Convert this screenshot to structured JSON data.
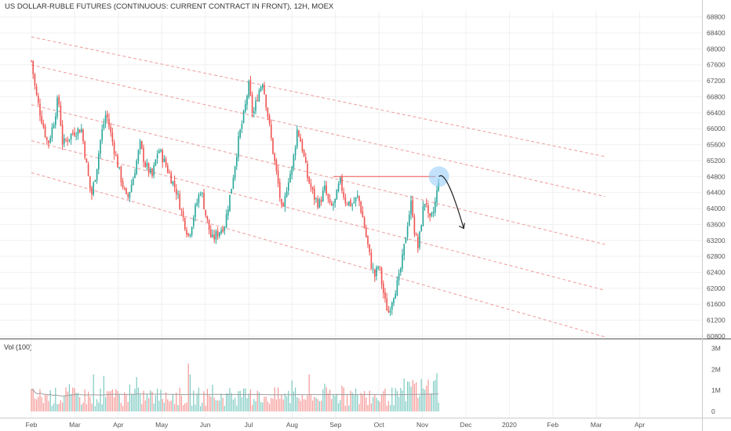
{
  "header": {
    "title": "US DOLLAR-RUBLE FUTURES (CONTINUOUS: CURRENT CONTRACT IN FRONT), 12H, MOEX"
  },
  "volume_pane": {
    "label": "Vol (100)"
  },
  "colors": {
    "up": "#26a69a",
    "down": "#ef5350",
    "channel": "#ef9a9a",
    "resistance": "#ef5350",
    "highlight": "#90caf9",
    "arrow": "#222222",
    "grid": "#f0f0f0",
    "ma": "#9e9e9e"
  },
  "chart_data": [
    {
      "type": "candlestick",
      "title": "",
      "y_axis": {
        "ticks": [
          60800,
          61200,
          61600,
          62000,
          62400,
          62800,
          63200,
          63600,
          64000,
          64400,
          64800,
          65200,
          65600,
          66000,
          66400,
          66800,
          67200,
          67600,
          68000,
          68400,
          68800
        ],
        "range": [
          60760,
          68950
        ],
        "position": "right"
      },
      "x_axis": {
        "ticks": [
          "Feb",
          "Mar",
          "Apr",
          "May",
          "Jun",
          "Jul",
          "Aug",
          "Sep",
          "Oct",
          "Nov",
          "Dec",
          "2020",
          "Feb",
          "Mar",
          "Apr"
        ]
      },
      "grid": true,
      "price_path": [
        {
          "t": 0,
          "p": 67700
        },
        {
          "t": 0.1,
          "p": 66900
        },
        {
          "t": 0.2,
          "p": 66400
        },
        {
          "t": 0.38,
          "p": 65600
        },
        {
          "t": 0.5,
          "p": 66100
        },
        {
          "t": 0.62,
          "p": 66800
        },
        {
          "t": 0.72,
          "p": 65600
        },
        {
          "t": 0.95,
          "p": 65900
        },
        {
          "t": 1.15,
          "p": 66000
        },
        {
          "t": 1.28,
          "p": 65000
        },
        {
          "t": 1.38,
          "p": 64300
        },
        {
          "t": 1.5,
          "p": 65000
        },
        {
          "t": 1.6,
          "p": 65800
        },
        {
          "t": 1.72,
          "p": 66400
        },
        {
          "t": 1.88,
          "p": 65600
        },
        {
          "t": 2.05,
          "p": 64800
        },
        {
          "t": 2.2,
          "p": 64200
        },
        {
          "t": 2.35,
          "p": 64800
        },
        {
          "t": 2.5,
          "p": 65600
        },
        {
          "t": 2.62,
          "p": 65100
        },
        {
          "t": 2.78,
          "p": 64800
        },
        {
          "t": 2.92,
          "p": 65500
        },
        {
          "t": 3.05,
          "p": 65200
        },
        {
          "t": 3.2,
          "p": 64800
        },
        {
          "t": 3.35,
          "p": 64400
        },
        {
          "t": 3.48,
          "p": 63800
        },
        {
          "t": 3.62,
          "p": 63300
        },
        {
          "t": 3.75,
          "p": 63900
        },
        {
          "t": 3.9,
          "p": 64500
        },
        {
          "t": 4.02,
          "p": 63800
        },
        {
          "t": 4.15,
          "p": 63200
        },
        {
          "t": 4.3,
          "p": 63400
        },
        {
          "t": 4.45,
          "p": 63600
        },
        {
          "t": 4.6,
          "p": 64500
        },
        {
          "t": 4.78,
          "p": 65800
        },
        {
          "t": 4.9,
          "p": 66400
        },
        {
          "t": 5.0,
          "p": 67100
        },
        {
          "t": 5.1,
          "p": 66300
        },
        {
          "t": 5.22,
          "p": 66900
        },
        {
          "t": 5.32,
          "p": 67200
        },
        {
          "t": 5.42,
          "p": 66500
        },
        {
          "t": 5.55,
          "p": 65500
        },
        {
          "t": 5.68,
          "p": 64600
        },
        {
          "t": 5.78,
          "p": 63800
        },
        {
          "t": 5.9,
          "p": 64700
        },
        {
          "t": 6.0,
          "p": 65000
        },
        {
          "t": 6.12,
          "p": 66000
        },
        {
          "t": 6.22,
          "p": 65600
        },
        {
          "t": 6.35,
          "p": 64800
        },
        {
          "t": 6.5,
          "p": 64300
        },
        {
          "t": 6.62,
          "p": 64100
        },
        {
          "t": 6.75,
          "p": 64500
        },
        {
          "t": 6.88,
          "p": 64000
        },
        {
          "t": 7.0,
          "p": 64200
        },
        {
          "t": 7.1,
          "p": 64700
        },
        {
          "t": 7.22,
          "p": 64200
        },
        {
          "t": 7.38,
          "p": 64100
        },
        {
          "t": 7.52,
          "p": 64300
        },
        {
          "t": 7.62,
          "p": 63800
        },
        {
          "t": 7.72,
          "p": 63200
        },
        {
          "t": 7.82,
          "p": 62600
        },
        {
          "t": 7.9,
          "p": 62300
        },
        {
          "t": 8.0,
          "p": 62600
        },
        {
          "t": 8.08,
          "p": 62000
        },
        {
          "t": 8.15,
          "p": 61600
        },
        {
          "t": 8.22,
          "p": 61400
        },
        {
          "t": 8.32,
          "p": 61800
        },
        {
          "t": 8.45,
          "p": 62200
        },
        {
          "t": 8.55,
          "p": 62800
        },
        {
          "t": 8.65,
          "p": 63600
        },
        {
          "t": 8.75,
          "p": 64200
        },
        {
          "t": 8.82,
          "p": 63400
        },
        {
          "t": 8.9,
          "p": 63000
        },
        {
          "t": 9.0,
          "p": 63900
        },
        {
          "t": 9.08,
          "p": 64300
        },
        {
          "t": 9.15,
          "p": 63600
        },
        {
          "t": 9.25,
          "p": 63900
        },
        {
          "t": 9.32,
          "p": 64300
        },
        {
          "t": 9.38,
          "p": 64800
        }
      ],
      "channel_lines": [
        {
          "start": {
            "t": 0.0,
            "p": 68300
          },
          "end": {
            "t": 13.2,
            "p": 65300
          }
        },
        {
          "start": {
            "t": 0.0,
            "p": 67600
          },
          "end": {
            "t": 13.2,
            "p": 64300
          }
        },
        {
          "start": {
            "t": 0.0,
            "p": 66600
          },
          "end": {
            "t": 13.2,
            "p": 63100
          }
        },
        {
          "start": {
            "t": 0.0,
            "p": 65700
          },
          "end": {
            "t": 13.2,
            "p": 61950
          }
        },
        {
          "start": {
            "t": 0.0,
            "p": 64900
          },
          "end": {
            "t": 13.2,
            "p": 60780
          }
        }
      ],
      "resistance_line": {
        "start": {
          "t": 6.95,
          "p": 64800
        },
        "end": {
          "t": 9.3,
          "p": 64800
        }
      },
      "highlight_point": {
        "t": 9.38,
        "p": 64800
      },
      "projection_arrow": {
        "start": {
          "t": 9.38,
          "p": 64800
        },
        "peak": {
          "t": 9.55,
          "p": 64600
        },
        "end": {
          "t": 9.95,
          "p": 63500
        }
      }
    },
    {
      "type": "bar",
      "title": "",
      "y_axis": {
        "ticks": [
          "0",
          "1M",
          "2M",
          "3M"
        ],
        "range": [
          0,
          3200000
        ],
        "position": "right"
      },
      "moving_average": 100
    }
  ]
}
